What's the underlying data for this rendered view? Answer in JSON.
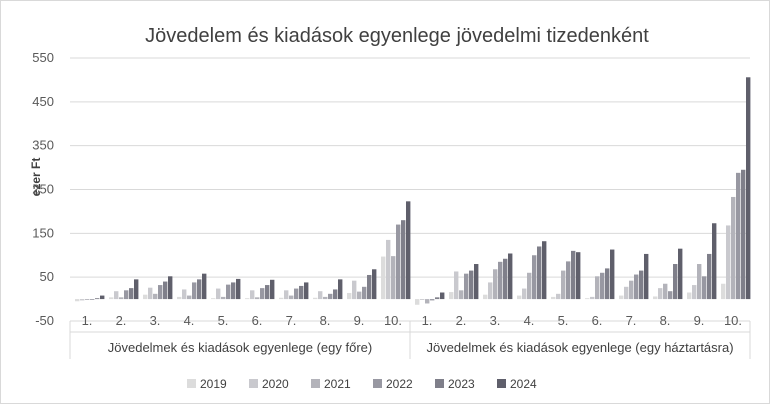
{
  "chart_data": {
    "type": "bar",
    "title": "Jövedelem és kiadások egyenlege jövedelmi tizedenként",
    "ylabel": "ezer Ft",
    "xlabel": "",
    "ylim": [
      -50,
      550
    ],
    "yticks": [
      -50,
      50,
      150,
      250,
      350,
      450,
      550
    ],
    "ytick_labels": [
      "-50",
      "50",
      "150",
      "250",
      "350",
      "450",
      "550"
    ],
    "grid": "horizontal",
    "legend_position": "bottom",
    "groups": [
      {
        "label": "Jövedelmek és kiadások egyenlege (egy főre)",
        "categories": [
          "1.",
          "2.",
          "3.",
          "4.",
          "5.",
          "6.",
          "7.",
          "8.",
          "9.",
          "10."
        ]
      },
      {
        "label": "Jövedelmek és kiadások egyenlege (egy háztartásra)",
        "categories": [
          "1.",
          "2.",
          "3.",
          "4.",
          "5.",
          "6.",
          "7.",
          "8.",
          "9.",
          "10."
        ]
      }
    ],
    "series": [
      {
        "name": "2019",
        "color": "#dcdcdc",
        "values": [
          -5,
          4,
          10,
          5,
          2,
          2,
          3,
          3,
          14,
          97,
          -13,
          16,
          10,
          8,
          5,
          2,
          8,
          6,
          15,
          35
        ]
      },
      {
        "name": "2020",
        "color": "#c9c9ce",
        "values": [
          -3,
          18,
          26,
          22,
          24,
          20,
          20,
          18,
          42,
          135,
          -2,
          63,
          38,
          24,
          12,
          5,
          28,
          25,
          32,
          168
        ]
      },
      {
        "name": "2021",
        "color": "#b3b3ba",
        "values": [
          -2,
          4,
          12,
          8,
          5,
          4,
          8,
          5,
          17,
          98,
          -10,
          20,
          68,
          60,
          65,
          52,
          42,
          35,
          80,
          233
        ]
      },
      {
        "name": "2022",
        "color": "#9898a2",
        "values": [
          -1,
          20,
          32,
          38,
          33,
          25,
          24,
          12,
          28,
          170,
          -3,
          58,
          85,
          100,
          86,
          60,
          56,
          18,
          52,
          288
        ]
      },
      {
        "name": "2023",
        "color": "#7f7f8a",
        "values": [
          2,
          25,
          40,
          45,
          38,
          32,
          30,
          22,
          55,
          180,
          4,
          65,
          92,
          120,
          110,
          70,
          65,
          80,
          103,
          295
        ]
      },
      {
        "name": "2024",
        "color": "#5f5f6b",
        "values": [
          8,
          45,
          52,
          58,
          46,
          44,
          38,
          45,
          68,
          223,
          15,
          80,
          104,
          132,
          107,
          113,
          103,
          115,
          173,
          506
        ]
      }
    ]
  }
}
